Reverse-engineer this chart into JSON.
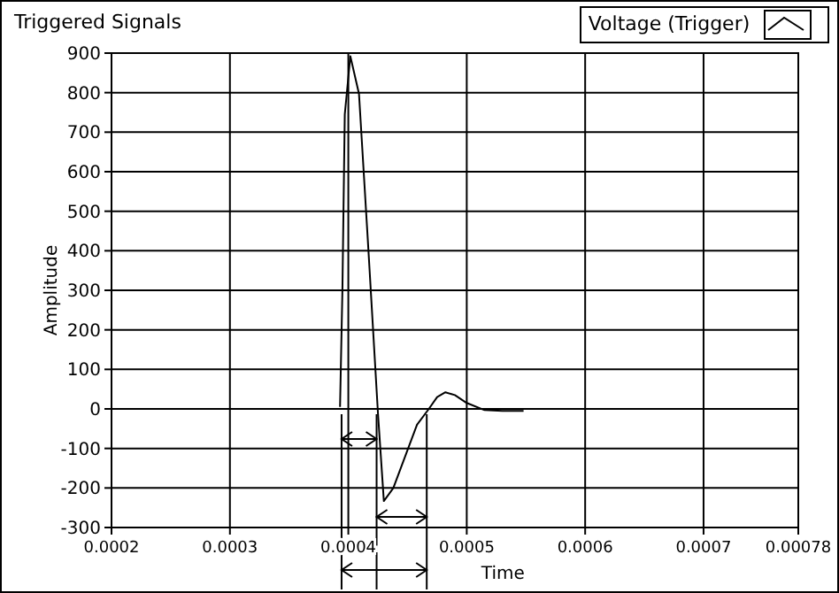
{
  "chart_data": {
    "type": "line",
    "title": "Triggered Signals",
    "xlabel": "Time",
    "ylabel": "Amplitude",
    "xlim": [
      0.0002,
      0.00078
    ],
    "xticks": [
      0.0002,
      0.0003,
      0.0004,
      0.0005,
      0.0006,
      0.0007,
      0.00078
    ],
    "ylim": [
      -300,
      900
    ],
    "yticks": [
      -300,
      -200,
      -100,
      0,
      100,
      200,
      300,
      400,
      500,
      600,
      700,
      800,
      900
    ],
    "grid": true,
    "legend": "top right",
    "marker": "none",
    "line_style": "solid",
    "series": [
      {
        "name": "Voltage (Trigger)",
        "color": "#000000",
        "x": [
          0.00021,
          0.000225,
          0.00024,
          0.00026,
          0.00028,
          0.0003,
          null,
          0.000393,
          0.000395,
          0.000397,
          0.0004017,
          0.000409,
          0.000417,
          0.000425,
          0.00043,
          0.000438,
          0.000448,
          0.000458,
          0.000468,
          0.000475,
          0.000482,
          0.00049,
          0.0005,
          0.000515,
          0.00053,
          0.000548
        ],
        "values": [
          0,
          0,
          0,
          0,
          0,
          0,
          null,
          5,
          300,
          745,
          892,
          797,
          400,
          -10,
          -233,
          -200,
          -120,
          -40,
          0,
          30,
          42,
          35,
          15,
          -3,
          -5,
          -5
        ]
      }
    ]
  }
}
